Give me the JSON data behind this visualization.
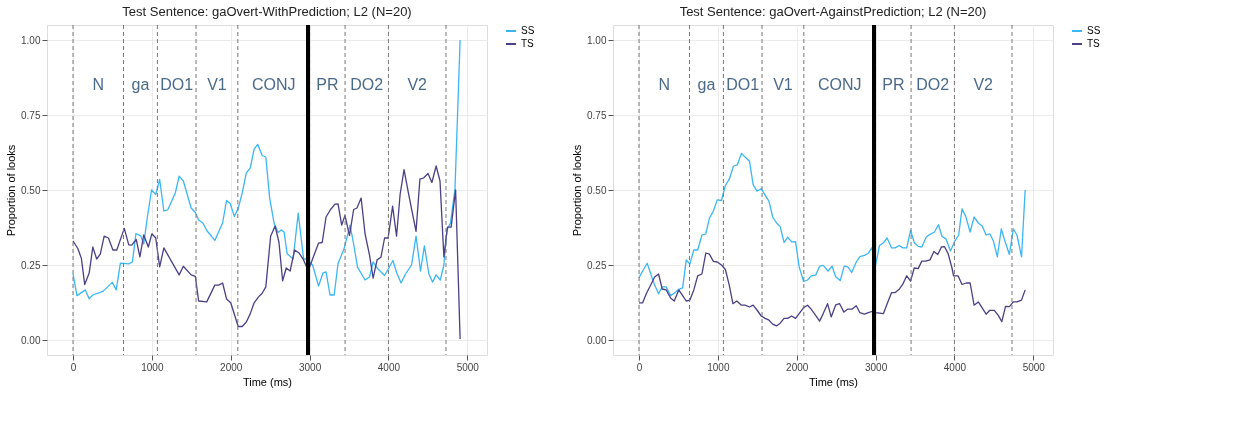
{
  "chart_data": [
    {
      "type": "line",
      "title": "Test Sentence: gaOvert-WithPrediction; L2 (N=20)",
      "xlabel": "Time (ms)",
      "ylabel": "Proportion of looks",
      "xlim": [
        -330,
        5250
      ],
      "ylim": [
        -0.05,
        1.05
      ],
      "xticks": [
        0,
        1000,
        2000,
        3000,
        4000,
        5000
      ],
      "yticks": [
        {
          "value": 0,
          "label": "0.00"
        },
        {
          "value": 0.25,
          "label": "0.25"
        },
        {
          "value": 0.5,
          "label": "0.50"
        },
        {
          "value": 0.75,
          "label": "0.75"
        },
        {
          "value": 1,
          "label": "1.00"
        }
      ],
      "grid": true,
      "legend": "right",
      "series": [
        {
          "name": "SS",
          "color": "#3cb6f3",
          "x": [
            0,
            50,
            156,
            205,
            251,
            384,
            498,
            548,
            601,
            707,
            753,
            798,
            859,
            897,
            943,
            996,
            1049,
            1099,
            1152,
            1202,
            1297,
            1346,
            1399,
            1498,
            1551,
            1593,
            1646,
            1696,
            1798,
            1897,
            1947,
            1992,
            2046,
            2095,
            2145,
            2198,
            2247,
            2297,
            2342,
            2399,
            2445,
            2494,
            2551,
            2601,
            2639,
            2677,
            2715,
            2791,
            2856,
            2924,
            2962,
            3038,
            3114,
            3171,
            3209,
            3259,
            3312,
            3361,
            3437,
            3513,
            3559,
            3608,
            3703,
            3760,
            3806,
            3856,
            3951,
            4057,
            4103,
            4160,
            4217,
            4293,
            4350,
            4407,
            4456,
            4513,
            4559,
            4605,
            4658,
            4703,
            4741,
            4787,
            4844,
            4909
          ],
          "values": [
            0.22,
            0.148,
            0.167,
            0.137,
            0.15,
            0.163,
            0.192,
            0.167,
            0.256,
            0.254,
            0.26,
            0.355,
            0.347,
            0.32,
            0.41,
            0.5,
            0.485,
            0.535,
            0.43,
            0.434,
            0.49,
            0.546,
            0.53,
            0.44,
            0.425,
            0.4,
            0.39,
            0.365,
            0.332,
            0.39,
            0.465,
            0.456,
            0.412,
            0.438,
            0.49,
            0.557,
            0.573,
            0.636,
            0.652,
            0.615,
            0.61,
            0.473,
            0.388,
            0.358,
            0.367,
            0.36,
            0.288,
            0.27,
            0.423,
            0.27,
            0.27,
            0.25,
            0.18,
            0.224,
            0.227,
            0.15,
            0.15,
            0.255,
            0.304,
            0.383,
            0.32,
            0.243,
            0.2,
            0.21,
            0.26,
            0.24,
            0.215,
            0.265,
            0.225,
            0.19,
            0.22,
            0.25,
            0.346,
            0.23,
            0.314,
            0.22,
            0.193,
            0.217,
            0.2,
            0.25,
            0.367,
            0.39,
            0.504,
            1.0
          ]
        },
        {
          "name": "TS",
          "color": "#4b3f86",
          "x": [
            0,
            61,
            106,
            148,
            205,
            251,
            300,
            346,
            395,
            449,
            506,
            555,
            650,
            707,
            745,
            802,
            848,
            897,
            955,
            1000,
            1049,
            1099,
            1152,
            1346,
            1399,
            1498,
            1551,
            1593,
            1696,
            1798,
            1848,
            1897,
            1947,
            2000,
            2095,
            2145,
            2198,
            2247,
            2297,
            2350,
            2399,
            2445,
            2506,
            2563,
            2612,
            2658,
            2704,
            2753,
            2810,
            2867,
            2924,
            2962,
            3000,
            3057,
            3114,
            3160,
            3209,
            3266,
            3323,
            3361,
            3407,
            3449,
            3506,
            3559,
            3601,
            3654,
            3703,
            3760,
            3806,
            3856,
            3905,
            3951,
            3996,
            4053,
            4103,
            4148,
            4198,
            4255,
            4350,
            4399,
            4445,
            4502,
            4551,
            4605,
            4654,
            4703,
            4749,
            4795,
            4852,
            4909
          ],
          "values": [
            0.33,
            0.305,
            0.272,
            0.185,
            0.223,
            0.31,
            0.27,
            0.286,
            0.346,
            0.34,
            0.3,
            0.3,
            0.372,
            0.317,
            0.316,
            0.335,
            0.277,
            0.35,
            0.31,
            0.354,
            0.34,
            0.244,
            0.307,
            0.217,
            0.246,
            0.217,
            0.212,
            0.13,
            0.127,
            0.183,
            0.183,
            0.19,
            0.137,
            0.124,
            0.045,
            0.045,
            0.06,
            0.087,
            0.124,
            0.143,
            0.156,
            0.177,
            0.346,
            0.38,
            0.325,
            0.197,
            0.24,
            0.23,
            0.3,
            0.29,
            0.267,
            0.243,
            0.243,
            0.283,
            0.323,
            0.325,
            0.41,
            0.435,
            0.453,
            0.454,
            0.383,
            0.415,
            0.348,
            0.435,
            0.44,
            0.473,
            0.355,
            0.283,
            0.206,
            0.267,
            0.276,
            0.34,
            0.34,
            0.446,
            0.346,
            0.485,
            0.568,
            0.488,
            0.362,
            0.536,
            0.54,
            0.555,
            0.525,
            0.58,
            0.53,
            0.277,
            0.376,
            0.376,
            0.5,
            0.003
          ]
        }
      ],
      "ref_lines": [
        {
          "axis": "x",
          "value": 0,
          "color": "#777777",
          "line_style": "dashed"
        },
        {
          "axis": "x",
          "value": 640,
          "color": "#777777",
          "line_style": "dashed"
        },
        {
          "axis": "x",
          "value": 1070,
          "color": "#777777",
          "line_style": "dashed"
        },
        {
          "axis": "x",
          "value": 1560,
          "color": "#777777",
          "line_style": "dashed"
        },
        {
          "axis": "x",
          "value": 2090,
          "color": "#777777",
          "line_style": "dashed"
        },
        {
          "axis": "x",
          "value": 3000,
          "color": "#777777",
          "line_style": "dashed"
        },
        {
          "axis": "x",
          "value": 3450,
          "color": "#777777",
          "line_style": "dashed"
        },
        {
          "axis": "x",
          "value": 4000,
          "color": "#777777",
          "line_style": "dashed"
        },
        {
          "axis": "x",
          "value": 4730,
          "color": "#777777",
          "line_style": "dashed"
        },
        {
          "axis": "x",
          "value": 2980,
          "color": "#000000",
          "line_style": "solid"
        }
      ],
      "annotations": [
        "N",
        "ga",
        "DO1",
        "V1",
        "CONJ",
        "PR",
        "DO2",
        "V2"
      ]
    },
    {
      "type": "line",
      "title": "Test Sentence: gaOvert-AgainstPrediction; L2 (N=20)",
      "xlabel": "Time (ms)",
      "ylabel": "Proportion of looks",
      "xlim": [
        -330,
        5250
      ],
      "ylim": [
        -0.05,
        1.05
      ],
      "xticks": [
        0,
        1000,
        2000,
        3000,
        4000,
        5000
      ],
      "yticks": [
        {
          "value": 0,
          "label": "0.00"
        },
        {
          "value": 0.25,
          "label": "0.25"
        },
        {
          "value": 0.5,
          "label": "0.50"
        },
        {
          "value": 0.75,
          "label": "0.75"
        },
        {
          "value": 1,
          "label": "1.00"
        }
      ],
      "grid": true,
      "legend": "right",
      "series": [
        {
          "name": "SS",
          "color": "#3cb6f3",
          "x": [
            0,
            46,
            103,
            198,
            248,
            294,
            344,
            401,
            447,
            504,
            553,
            599,
            645,
            695,
            744,
            798,
            847,
            893,
            943,
            992,
            1046,
            1095,
            1145,
            1198,
            1248,
            1298,
            1344,
            1401,
            1447,
            1496,
            1550,
            1599,
            1649,
            1695,
            1744,
            1790,
            1840,
            1885,
            1935,
            1985,
            2031,
            2088,
            2137,
            2183,
            2240,
            2290,
            2336,
            2398,
            2448,
            2494,
            2552,
            2602,
            2648,
            2697,
            2755,
            2801,
            2858,
            2908,
            2954,
            3000,
            3050,
            3100,
            3146,
            3203,
            3249,
            3299,
            3345,
            3395,
            3444,
            3490,
            3540,
            3586,
            3644,
            3693,
            3747,
            3797,
            3843,
            3893,
            3950,
            4000,
            4054,
            4096,
            4142,
            4199,
            4249,
            4303,
            4352,
            4402,
            4448,
            4494,
            4544,
            4594,
            4640,
            4697,
            4747,
            4793,
            4851,
            4897
          ],
          "values": [
            0.207,
            0.23,
            0.256,
            0.183,
            0.154,
            0.177,
            0.177,
            0.148,
            0.156,
            0.169,
            0.174,
            0.267,
            0.253,
            0.3,
            0.3,
            0.35,
            0.354,
            0.406,
            0.43,
            0.467,
            0.465,
            0.515,
            0.536,
            0.58,
            0.584,
            0.622,
            0.61,
            0.596,
            0.518,
            0.496,
            0.504,
            0.483,
            0.462,
            0.41,
            0.39,
            0.378,
            0.325,
            0.343,
            0.327,
            0.328,
            0.243,
            0.195,
            0.2,
            0.214,
            0.216,
            0.246,
            0.249,
            0.23,
            0.246,
            0.211,
            0.198,
            0.246,
            0.244,
            0.225,
            0.26,
            0.278,
            0.282,
            0.289,
            0.308,
            0.25,
            0.315,
            0.324,
            0.34,
            0.307,
            0.307,
            0.315,
            0.307,
            0.307,
            0.365,
            0.325,
            0.312,
            0.31,
            0.344,
            0.352,
            0.36,
            0.384,
            0.345,
            0.337,
            0.297,
            0.327,
            0.35,
            0.437,
            0.413,
            0.36,
            0.41,
            0.39,
            0.38,
            0.35,
            0.354,
            0.33,
            0.277,
            0.37,
            0.33,
            0.285,
            0.37,
            0.35,
            0.277,
            0.5
          ]
        },
        {
          "name": "TS",
          "color": "#4b3f86",
          "x": [
            0,
            46,
            95,
            153,
            198,
            248,
            294,
            344,
            401,
            447,
            504,
            553,
            599,
            645,
            695,
            744,
            798,
            847,
            893,
            943,
            992,
            1046,
            1095,
            1145,
            1191,
            1240,
            1298,
            1344,
            1401,
            1447,
            1496,
            1550,
            1599,
            1649,
            1695,
            1744,
            1790,
            1840,
            1885,
            1935,
            1985,
            2031,
            2088,
            2137,
            2183,
            2240,
            2290,
            2336,
            2391,
            2437,
            2494,
            2544,
            2598,
            2648,
            2705,
            2755,
            2801,
            2858,
            2908,
            2954,
            3000,
            3100,
            3146,
            3203,
            3249,
            3299,
            3345,
            3395,
            3444,
            3490,
            3540,
            3586,
            3636,
            3690,
            3740,
            3789,
            3835,
            3874,
            3920,
            3969,
            3989,
            4046,
            4096,
            4149,
            4199,
            4249,
            4303,
            4352,
            4402,
            4448,
            4506,
            4556,
            4601,
            4648,
            4697,
            4747,
            4793,
            4851,
            4897
          ],
          "values": [
            0.124,
            0.124,
            0.156,
            0.186,
            0.21,
            0.22,
            0.17,
            0.167,
            0.14,
            0.13,
            0.167,
            0.148,
            0.13,
            0.133,
            0.167,
            0.214,
            0.22,
            0.29,
            0.286,
            0.262,
            0.26,
            0.25,
            0.235,
            0.182,
            0.121,
            0.13,
            0.116,
            0.116,
            0.11,
            0.116,
            0.1,
            0.08,
            0.072,
            0.066,
            0.053,
            0.047,
            0.056,
            0.072,
            0.072,
            0.08,
            0.072,
            0.088,
            0.108,
            0.116,
            0.103,
            0.082,
            0.063,
            0.088,
            0.121,
            0.077,
            0.117,
            0.121,
            0.093,
            0.103,
            0.103,
            0.114,
            0.091,
            0.086,
            0.091,
            0.095,
            0.091,
            0.088,
            0.12,
            0.158,
            0.158,
            0.169,
            0.186,
            0.214,
            0.196,
            0.24,
            0.238,
            0.263,
            0.263,
            0.267,
            0.295,
            0.285,
            0.31,
            0.311,
            0.288,
            0.24,
            0.214,
            0.214,
            0.185,
            0.19,
            0.19,
            0.116,
            0.127,
            0.107,
            0.086,
            0.099,
            0.099,
            0.082,
            0.061,
            0.112,
            0.111,
            0.127,
            0.127,
            0.133,
            0.167
          ]
        }
      ],
      "ref_lines": [
        {
          "axis": "x",
          "value": 0,
          "color": "#777777",
          "line_style": "dashed"
        },
        {
          "axis": "x",
          "value": 640,
          "color": "#777777",
          "line_style": "dashed"
        },
        {
          "axis": "x",
          "value": 1070,
          "color": "#777777",
          "line_style": "dashed"
        },
        {
          "axis": "x",
          "value": 1560,
          "color": "#777777",
          "line_style": "dashed"
        },
        {
          "axis": "x",
          "value": 2090,
          "color": "#777777",
          "line_style": "dashed"
        },
        {
          "axis": "x",
          "value": 3000,
          "color": "#777777",
          "line_style": "dashed"
        },
        {
          "axis": "x",
          "value": 3450,
          "color": "#777777",
          "line_style": "dashed"
        },
        {
          "axis": "x",
          "value": 4000,
          "color": "#777777",
          "line_style": "dashed"
        },
        {
          "axis": "x",
          "value": 4730,
          "color": "#777777",
          "line_style": "dashed"
        },
        {
          "axis": "x",
          "value": 2980,
          "color": "#000000",
          "line_style": "solid"
        }
      ],
      "annotations": [
        "N",
        "ga",
        "DO1",
        "V1",
        "CONJ",
        "PR",
        "DO2",
        "V2"
      ]
    }
  ]
}
